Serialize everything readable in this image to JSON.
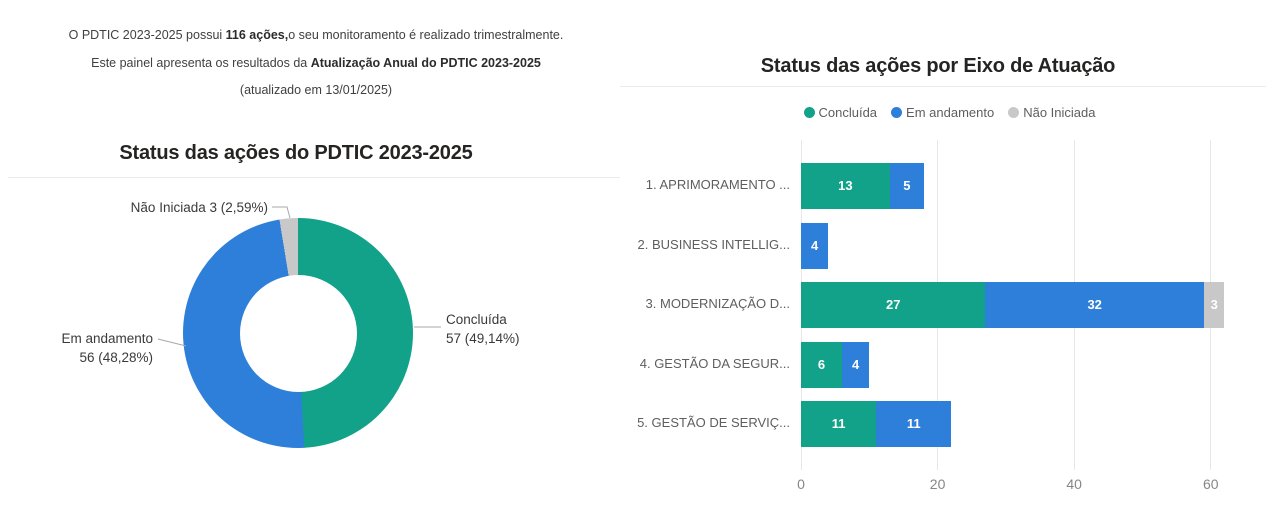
{
  "intro": {
    "lines": [
      [
        {
          "t": "O PDTIC 2023-2025 possui ",
          "b": false
        },
        {
          "t": "116 ações,",
          "b": true
        },
        {
          "t": "o seu monitoramento é realizado trimestralmente.",
          "b": false
        }
      ],
      [
        {
          "t": "Este painel apresenta os resultados da ",
          "b": false
        },
        {
          "t": "Atualização Anual do PDTIC 2023-2025",
          "b": true
        }
      ],
      [
        {
          "t": "(atualizado em 13/01/2025)",
          "b": false
        }
      ]
    ]
  },
  "left_panel": {
    "title": "Status das ações do PDTIC 2023-2025"
  },
  "right_panel": {
    "title": "Status das ações por Eixo de Atuação"
  },
  "donut_labels": {
    "nao_iniciada": "Não Iniciada 3 (2,59%)",
    "em_andamento_line1": "Em andamento",
    "em_andamento_line2": "56 (48,28%)",
    "concluida_line1": "Concluída",
    "concluida_line2": "57 (49,14%)"
  },
  "colors": {
    "concluida": "#12a289",
    "em_andamento": "#2d7fd9",
    "nao_iniciada": "#c8c8c8",
    "gridline": "#e7e7e7",
    "divider": "#ebebeb",
    "title_text": "#252423",
    "muted_text": "#605e5c",
    "axis_text": "#868686",
    "leader_line": "#a8a8a8",
    "value_label": "#ffffff"
  },
  "chart_data": [
    {
      "type": "pie",
      "subtype": "donut",
      "title": "Status das ações do PDTIC 2023-2025",
      "labels": [
        "Concluída",
        "Em andamento",
        "Não Iniciada"
      ],
      "values": [
        57,
        56,
        3
      ],
      "pct_labels": [
        "49,14%",
        "48,28%",
        "2,59%"
      ],
      "colors": [
        "#12a289",
        "#2d7fd9",
        "#c8c8c8"
      ],
      "total": 116,
      "start_angle_deg": 0,
      "direction": "clockwise"
    },
    {
      "type": "bar",
      "orientation": "horizontal",
      "stacked": true,
      "title": "Status das ações por Eixo de Atuação",
      "categories": [
        "1. APRIMORAMENTO ...",
        "2. BUSINESS INTELLIG...",
        "3. MODERNIZAÇÃO D...",
        "4. GESTÃO DA SEGUR...",
        "5. GESTÃO DE SERVIÇ..."
      ],
      "series": [
        {
          "name": "Concluída",
          "color": "#12a289",
          "values": [
            13,
            0,
            27,
            6,
            11
          ]
        },
        {
          "name": "Em andamento",
          "color": "#2d7fd9",
          "values": [
            5,
            4,
            32,
            4,
            11
          ]
        },
        {
          "name": "Não Iniciada",
          "color": "#c8c8c8",
          "values": [
            0,
            0,
            3,
            0,
            0
          ]
        }
      ],
      "x_ticks": [
        0,
        20,
        40,
        60
      ],
      "xlim": [
        0,
        64
      ],
      "grid": true,
      "legend_position": "top"
    }
  ]
}
